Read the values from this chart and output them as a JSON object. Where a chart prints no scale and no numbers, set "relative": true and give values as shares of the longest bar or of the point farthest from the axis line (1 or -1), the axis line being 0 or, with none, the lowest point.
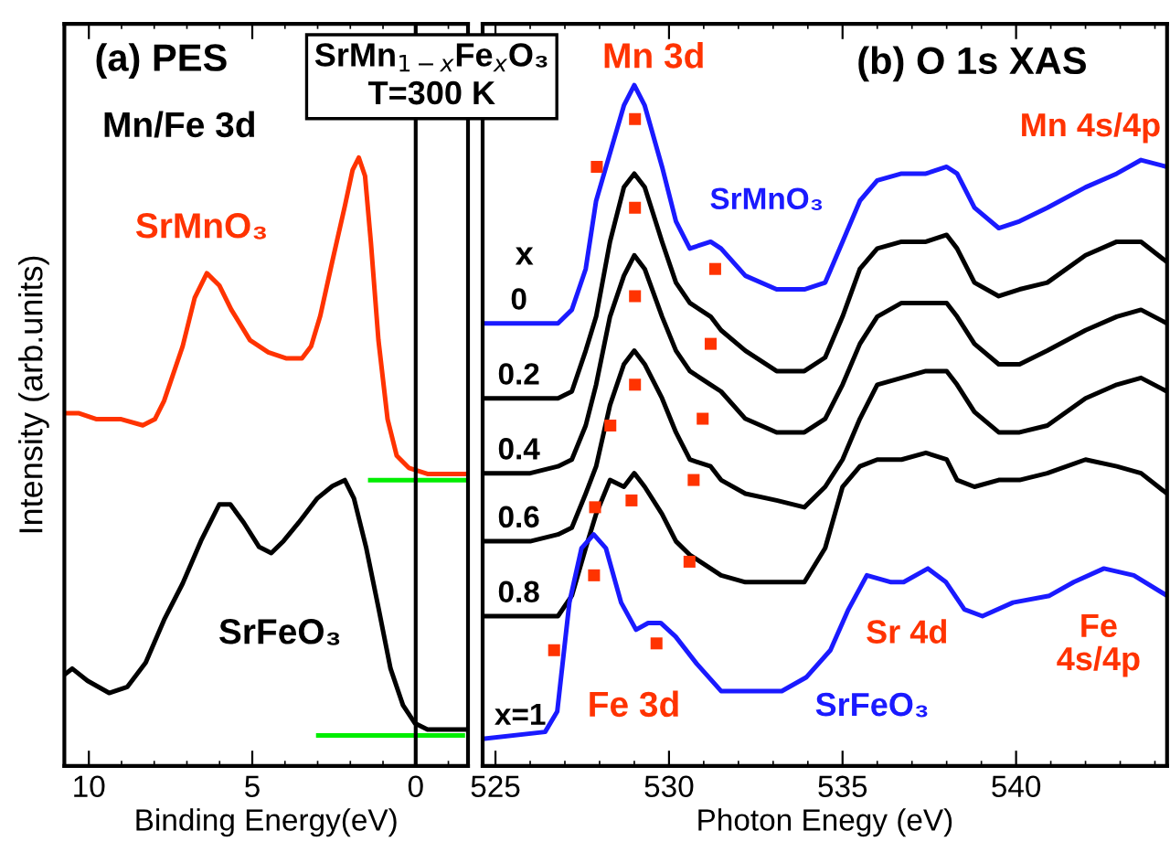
{
  "chart_data": [
    {
      "type": "line",
      "relative": true,
      "xlabel": "Binding Energy(eV)",
      "ylabel": "Intensity (arb.units)",
      "xlim": [
        10.75,
        -1.6
      ],
      "xticks": [
        10,
        5,
        0
      ],
      "tick_labels": "x",
      "annotations": [
        "(a) PES",
        "Mn/Fe 3d",
        "SrMnO₃",
        "SrFeO₃",
        "SrMn$_{1−x}$Fe$_{x}$O₃\nT=300 K"
      ],
      "ref_lines": [
        {
          "axis": "x",
          "value": 0,
          "color": "#000000"
        }
      ],
      "series": [
        {
          "color": "#ff3300",
          "x": [
            10.75,
            10.32,
            9.76,
            9.01,
            8.35,
            7.98,
            7.7,
            7.13,
            6.76,
            6.39,
            6.01,
            5.64,
            5.07,
            4.51,
            3.95,
            3.48,
            3.2,
            2.92,
            2.55,
            2.17,
            1.93,
            1.74,
            1.55,
            1.37,
            1.14,
            0.86,
            0.58,
            0.21,
            -0.36,
            -1.6
          ],
          "values": [
            0.58,
            0.58,
            0.57,
            0.57,
            0.56,
            0.57,
            0.6,
            0.69,
            0.77,
            0.81,
            0.79,
            0.75,
            0.7,
            0.68,
            0.67,
            0.67,
            0.69,
            0.74,
            0.83,
            0.92,
            0.98,
            1.0,
            0.97,
            0.86,
            0.7,
            0.57,
            0.51,
            0.49,
            0.48,
            0.48
          ]
        },
        {
          "color": "#000000",
          "x": [
            10.75,
            10.51,
            10.04,
            9.38,
            8.82,
            8.26,
            7.7,
            7.13,
            6.57,
            6.01,
            5.67,
            5.26,
            4.79,
            4.42,
            4.04,
            3.58,
            3.01,
            2.55,
            2.17,
            1.89,
            1.52,
            1.14,
            0.77,
            0.39,
            0.02,
            -0.36,
            -0.92,
            -1.6
          ],
          "values": [
            0.15,
            0.16,
            0.14,
            0.12,
            0.13,
            0.17,
            0.24,
            0.3,
            0.37,
            0.43,
            0.43,
            0.4,
            0.36,
            0.35,
            0.37,
            0.4,
            0.44,
            0.46,
            0.47,
            0.44,
            0.36,
            0.26,
            0.16,
            0.1,
            0.07,
            0.06,
            0.06,
            0.06
          ]
        },
        {
          "color": "#00ee00",
          "x": [
            1.39,
            -1.52
          ],
          "values": [
            0.47,
            0.47
          ]
        },
        {
          "color": "#00ee00",
          "x": [
            2.98,
            -1.44
          ],
          "values": [
            0.05,
            0.05
          ]
        }
      ]
    },
    {
      "type": "line",
      "relative": true,
      "xlabel": "Photon Enegy (eV)",
      "xlim": [
        524.63,
        544.35
      ],
      "xticks": [
        525,
        530,
        535,
        540
      ],
      "tick_labels": "x",
      "annotations": [
        "Mn 3d",
        "(b) O 1s XAS",
        "Mn 4s/4p",
        "SrMnO₃",
        "x",
        "Sr 4d",
        "Fe 3d",
        "SrFeO₃",
        "Fe\n4s/4p"
      ],
      "x": [
        524.65,
        526.0,
        526.8,
        527.2,
        527.6,
        527.9,
        528.3,
        528.7,
        529.0,
        529.3,
        529.8,
        530.2,
        530.6,
        531.2,
        531.5,
        532.2,
        533.1,
        533.9,
        534.5,
        535.0,
        535.5,
        536.0,
        536.7,
        537.4,
        538.0,
        538.3,
        538.8,
        539.5,
        540.1,
        540.9,
        542.0,
        542.9,
        543.6,
        544.35
      ],
      "series": [
        {
          "name": "0",
          "color": "#1a1aff",
          "values": [
            0.65,
            0.65,
            0.65,
            0.67,
            0.73,
            0.83,
            0.9,
            0.97,
            1.0,
            0.97,
            0.88,
            0.8,
            0.76,
            0.77,
            0.76,
            0.72,
            0.7,
            0.7,
            0.71,
            0.77,
            0.83,
            0.86,
            0.87,
            0.87,
            0.88,
            0.87,
            0.82,
            0.79,
            0.8,
            0.82,
            0.85,
            0.87,
            0.89,
            0.88
          ]
        },
        {
          "name": "0.2",
          "color": "#000000",
          "values": [
            0.54,
            0.54,
            0.54,
            0.55,
            0.61,
            0.66,
            0.77,
            0.85,
            0.87,
            0.85,
            0.77,
            0.71,
            0.68,
            0.66,
            0.64,
            0.61,
            0.58,
            0.58,
            0.6,
            0.66,
            0.73,
            0.76,
            0.77,
            0.77,
            0.78,
            0.76,
            0.71,
            0.69,
            0.7,
            0.71,
            0.75,
            0.77,
            0.77,
            0.74
          ]
        },
        {
          "name": "0.4",
          "color": "#000000",
          "values": [
            0.43,
            0.43,
            0.44,
            0.45,
            0.5,
            0.56,
            0.66,
            0.72,
            0.75,
            0.73,
            0.66,
            0.61,
            0.58,
            0.56,
            0.55,
            0.51,
            0.49,
            0.49,
            0.51,
            0.56,
            0.62,
            0.66,
            0.68,
            0.68,
            0.68,
            0.66,
            0.62,
            0.59,
            0.59,
            0.61,
            0.64,
            0.66,
            0.67,
            0.65
          ]
        },
        {
          "name": "0.6",
          "color": "#000000",
          "values": [
            0.33,
            0.33,
            0.34,
            0.35,
            0.4,
            0.44,
            0.53,
            0.59,
            0.61,
            0.59,
            0.54,
            0.49,
            0.45,
            0.44,
            0.42,
            0.4,
            0.39,
            0.38,
            0.41,
            0.45,
            0.51,
            0.56,
            0.57,
            0.58,
            0.58,
            0.56,
            0.52,
            0.49,
            0.49,
            0.5,
            0.54,
            0.56,
            0.57,
            0.55
          ]
        },
        {
          "name": "0.8",
          "color": "#000000",
          "values": [
            0.22,
            0.22,
            0.22,
            0.25,
            0.32,
            0.37,
            0.42,
            0.41,
            0.43,
            0.41,
            0.37,
            0.33,
            0.31,
            0.29,
            0.28,
            0.27,
            0.27,
            0.27,
            0.32,
            0.41,
            0.44,
            0.45,
            0.45,
            0.46,
            0.45,
            0.42,
            0.41,
            0.42,
            0.42,
            0.43,
            0.45,
            0.44,
            0.43,
            0.4
          ]
        },
        {
          "name": "x=1",
          "color": "#1a1aff",
          "x": [
            524.69,
            526.43,
            526.78,
            527.13,
            527.48,
            527.83,
            528.18,
            528.62,
            529.05,
            529.4,
            529.76,
            530.19,
            530.8,
            531.5,
            532.37,
            533.25,
            533.95,
            534.65,
            535.17,
            535.7,
            536.4,
            536.76,
            537.46,
            537.98,
            538.51,
            539.03,
            539.91,
            540.96,
            541.66,
            542.53,
            543.39,
            544.35
          ],
          "values": [
            0.04,
            0.05,
            0.08,
            0.24,
            0.32,
            0.34,
            0.32,
            0.24,
            0.2,
            0.21,
            0.21,
            0.19,
            0.15,
            0.11,
            0.11,
            0.11,
            0.13,
            0.17,
            0.23,
            0.28,
            0.27,
            0.27,
            0.29,
            0.27,
            0.23,
            0.22,
            0.24,
            0.25,
            0.27,
            0.29,
            0.28,
            0.25
          ]
        },
        {
          "type": "scatter",
          "marker": "square",
          "color": "#ff3300",
          "x": [
            527.92,
            529.02,
            531.33,
            529.02,
            531.2,
            529.02,
            529.02,
            530.97,
            528.31,
            530.71,
            527.87,
            528.92,
            530.59,
            527.84,
            529.64,
            526.69
          ],
          "values": [
            0.88,
            0.95,
            0.73,
            0.82,
            0.62,
            0.69,
            0.56,
            0.51,
            0.5,
            0.42,
            0.38,
            0.39,
            0.3,
            0.28,
            0.18,
            0.17
          ]
        }
      ]
    }
  ]
}
